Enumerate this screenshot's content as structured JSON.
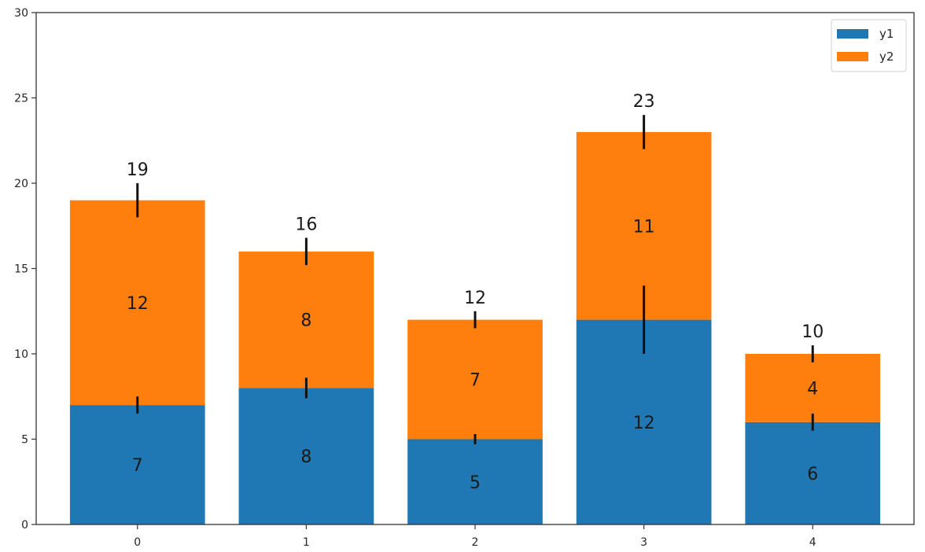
{
  "chart_data": {
    "type": "bar",
    "stacked": true,
    "title": "",
    "xlabel": "",
    "ylabel": "",
    "categories": [
      "0",
      "1",
      "2",
      "3",
      "4"
    ],
    "series": [
      {
        "name": "y1",
        "color": "#1f77b4",
        "values": [
          7,
          8,
          5,
          12,
          6
        ],
        "errors": [
          0.5,
          0.6,
          0.3,
          2,
          0.5
        ]
      },
      {
        "name": "y2",
        "color": "#ff7f0e",
        "values": [
          12,
          8,
          7,
          11,
          4
        ],
        "errors": [
          1,
          0.8,
          0.5,
          1,
          0.5
        ]
      }
    ],
    "totals": [
      19,
      16,
      12,
      23,
      10
    ],
    "ylim": [
      0,
      30
    ],
    "yticks": [
      0,
      5,
      10,
      15,
      20,
      25,
      30
    ],
    "grid": false,
    "legend_position": "upper right",
    "annotations": "segment values shown inside bars; stack totals shown above bars"
  }
}
